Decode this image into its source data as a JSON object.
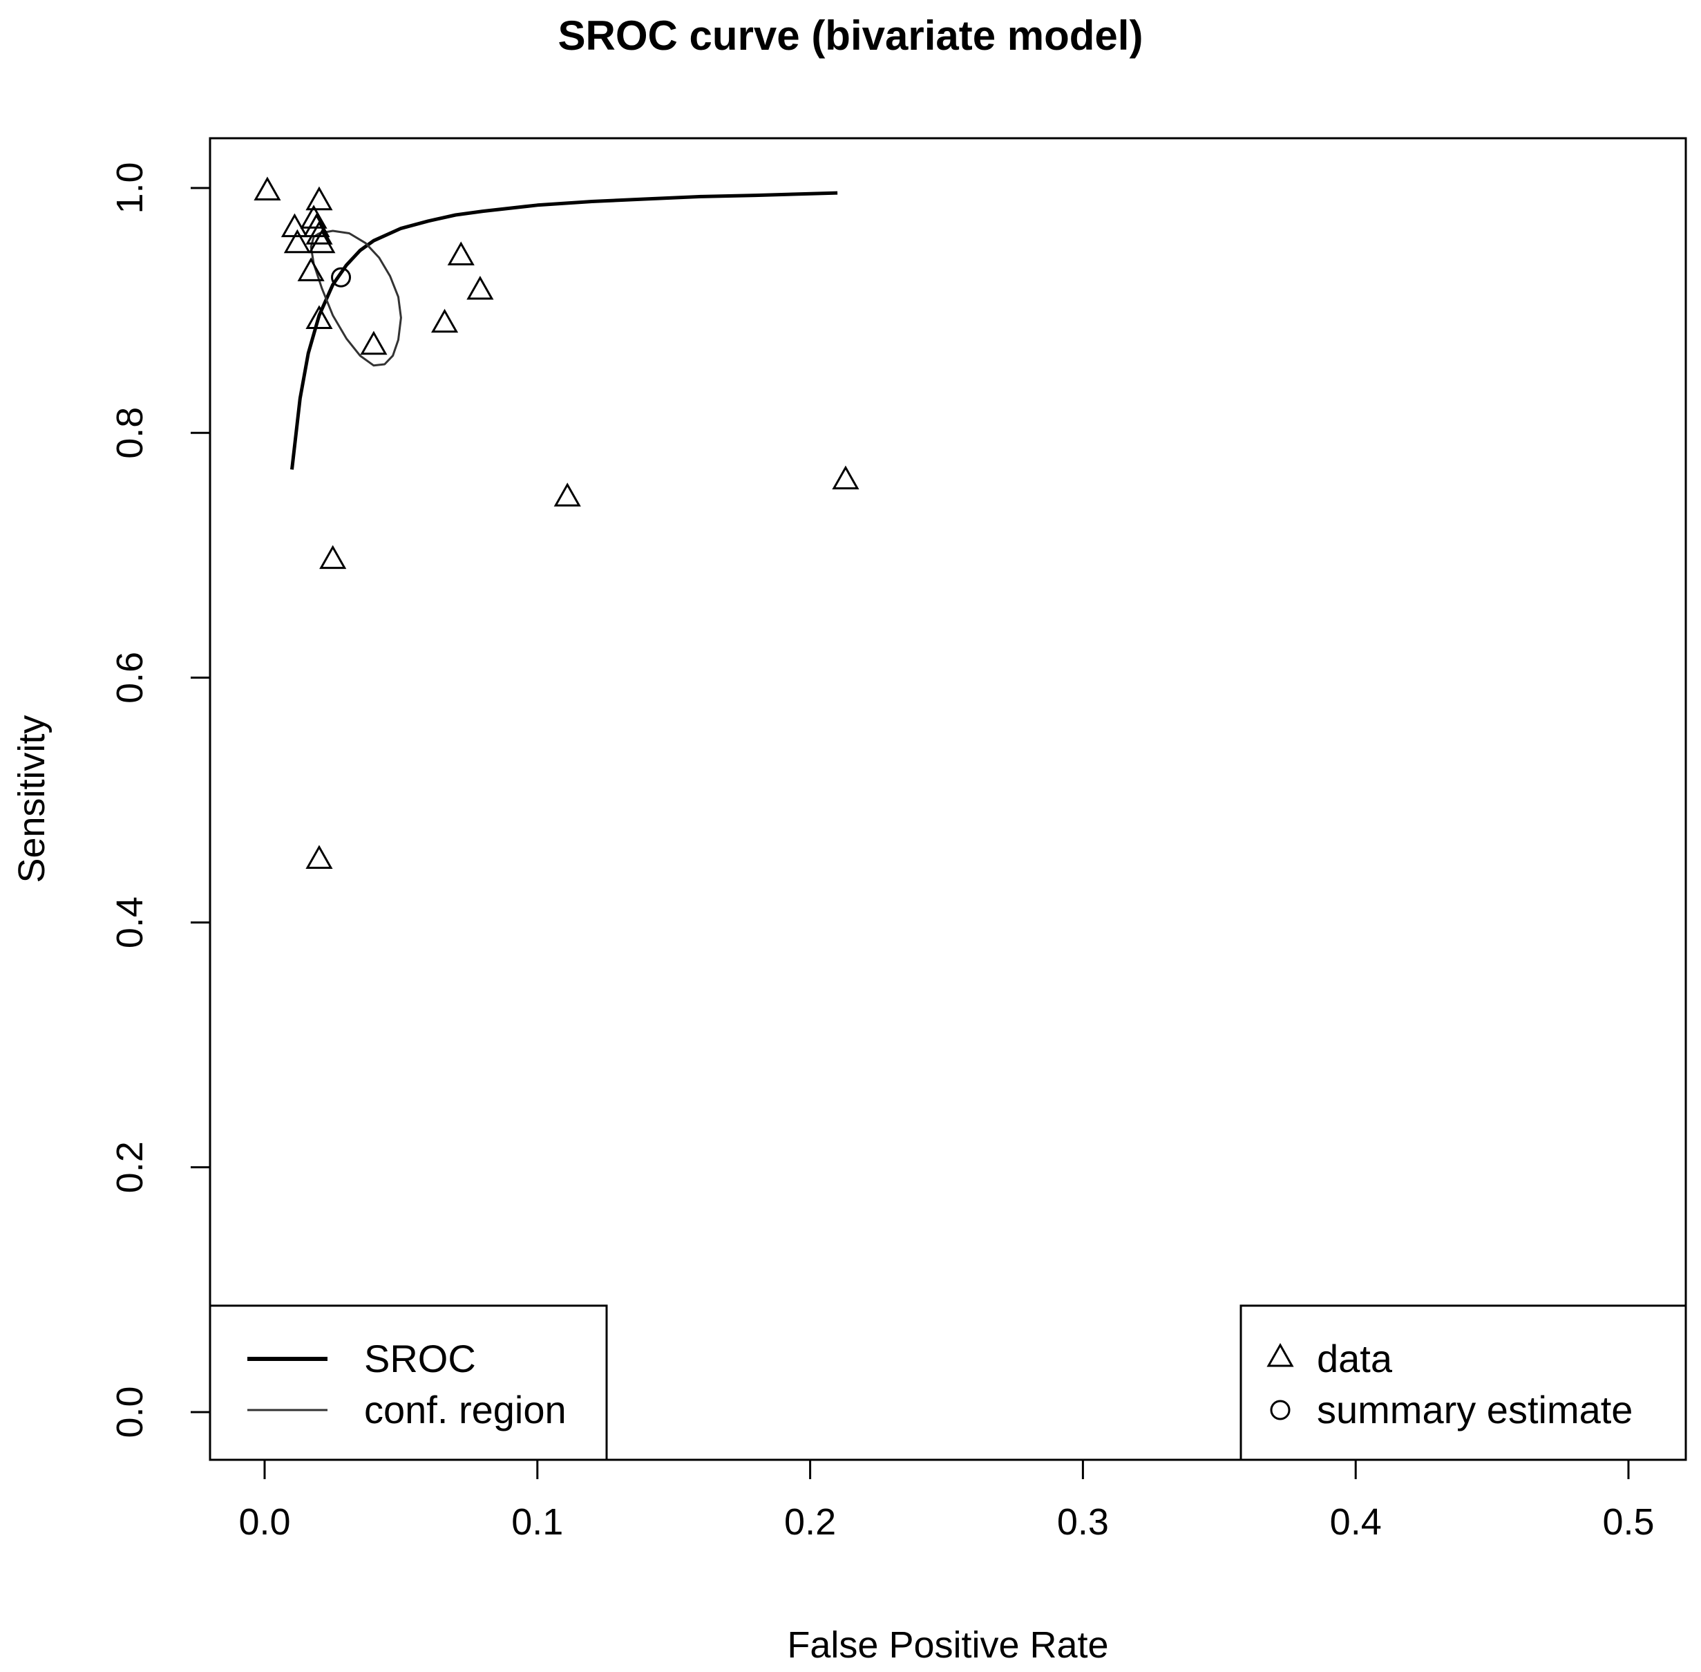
{
  "chart_data": {
    "type": "scatter",
    "title": "SROC curve (bivariate model)",
    "xlabel": "False Positive Rate",
    "ylabel": "Sensitivity",
    "xlim": [
      0.0,
      0.5
    ],
    "ylim": [
      0.0,
      1.0
    ],
    "x_ticks": [
      "0.0",
      "0.1",
      "0.2",
      "0.3",
      "0.4",
      "0.5"
    ],
    "y_ticks": [
      "0.0",
      "0.2",
      "0.4",
      "0.6",
      "0.8",
      "1.0"
    ],
    "data_points": [
      {
        "x": 0.001,
        "y": 0.998
      },
      {
        "x": 0.011,
        "y": 0.968
      },
      {
        "x": 0.012,
        "y": 0.955
      },
      {
        "x": 0.018,
        "y": 0.975
      },
      {
        "x": 0.019,
        "y": 0.968
      },
      {
        "x": 0.02,
        "y": 0.99
      },
      {
        "x": 0.02,
        "y": 0.962
      },
      {
        "x": 0.021,
        "y": 0.955
      },
      {
        "x": 0.017,
        "y": 0.932
      },
      {
        "x": 0.02,
        "y": 0.893
      },
      {
        "x": 0.04,
        "y": 0.872
      },
      {
        "x": 0.066,
        "y": 0.89
      },
      {
        "x": 0.072,
        "y": 0.945
      },
      {
        "x": 0.079,
        "y": 0.917
      },
      {
        "x": 0.025,
        "y": 0.697
      },
      {
        "x": 0.111,
        "y": 0.748
      },
      {
        "x": 0.213,
        "y": 0.762
      },
      {
        "x": 0.02,
        "y": 0.452
      }
    ],
    "summary_estimate": {
      "x": 0.028,
      "y": 0.927
    },
    "sroc_curve": [
      [
        0.01,
        0.77
      ],
      [
        0.013,
        0.828
      ],
      [
        0.016,
        0.865
      ],
      [
        0.02,
        0.896
      ],
      [
        0.025,
        0.921
      ],
      [
        0.03,
        0.937
      ],
      [
        0.035,
        0.949
      ],
      [
        0.04,
        0.957
      ],
      [
        0.05,
        0.967
      ],
      [
        0.06,
        0.973
      ],
      [
        0.07,
        0.978
      ],
      [
        0.08,
        0.981
      ],
      [
        0.1,
        0.986
      ],
      [
        0.12,
        0.989
      ],
      [
        0.14,
        0.991
      ],
      [
        0.16,
        0.993
      ],
      [
        0.18,
        0.994
      ],
      [
        0.21,
        0.996
      ]
    ],
    "conf_region": [
      [
        0.02,
        0.963
      ],
      [
        0.025,
        0.965
      ],
      [
        0.031,
        0.963
      ],
      [
        0.037,
        0.955
      ],
      [
        0.042,
        0.943
      ],
      [
        0.046,
        0.928
      ],
      [
        0.049,
        0.911
      ],
      [
        0.05,
        0.894
      ],
      [
        0.049,
        0.876
      ],
      [
        0.047,
        0.863
      ],
      [
        0.044,
        0.856
      ],
      [
        0.04,
        0.855
      ],
      [
        0.035,
        0.863
      ],
      [
        0.03,
        0.877
      ],
      [
        0.025,
        0.896
      ],
      [
        0.021,
        0.918
      ],
      [
        0.018,
        0.938
      ],
      [
        0.017,
        0.952
      ],
      [
        0.018,
        0.96
      ],
      [
        0.02,
        0.963
      ]
    ],
    "legends": {
      "lines": [
        {
          "label": "SROC",
          "style": "thick"
        },
        {
          "label": "conf. region",
          "style": "thin"
        }
      ],
      "markers": [
        {
          "label": "data",
          "marker": "triangle"
        },
        {
          "label": "summary estimate",
          "marker": "circle"
        }
      ]
    }
  },
  "colors": {
    "line": "#000000",
    "conf_line": "#333333",
    "background": "#ffffff"
  }
}
